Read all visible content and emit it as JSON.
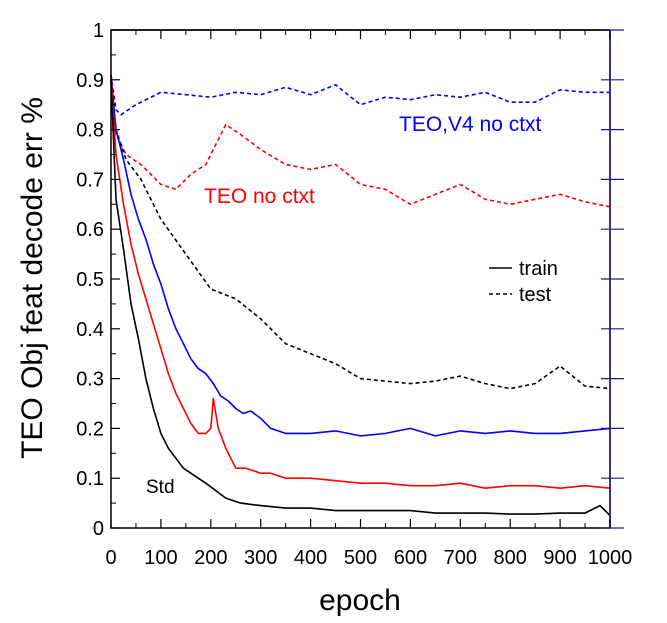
{
  "chart_data": {
    "type": "line",
    "xlabel": "epoch",
    "ylabel": "TEO Obj feat decode err %",
    "xlim": [
      0,
      1000
    ],
    "ylim": [
      0,
      1
    ],
    "xticks": [
      0,
      100,
      200,
      300,
      400,
      500,
      600,
      700,
      800,
      900,
      1000
    ],
    "yticks": [
      0,
      0.1,
      0.2,
      0.3,
      0.4,
      0.5,
      0.6,
      0.7,
      0.8,
      0.9,
      1
    ],
    "xtick_labels": [
      "0",
      "100",
      "200",
      "300",
      "400",
      "500",
      "600",
      "700",
      "800",
      "900",
      "1000"
    ],
    "ytick_labels": [
      "0",
      "0.1",
      "0.2",
      "0.3",
      "0.4",
      "0.5",
      "0.6",
      "0.7",
      "0.8",
      "0.9",
      "1"
    ],
    "grid": false,
    "legend": {
      "position": "right",
      "entries": [
        {
          "label": "train",
          "style": "solid"
        },
        {
          "label": "test",
          "style": "dashed"
        }
      ]
    },
    "annotations": [
      {
        "text": "TEO,V4 no ctxt",
        "color": "#0000ff"
      },
      {
        "text": "TEO no ctxt",
        "color": "#ff0000"
      },
      {
        "text": "Std",
        "color": "#000000"
      }
    ],
    "series": [
      {
        "color": "#0000ff",
        "style": "dashed",
        "x": [
          0,
          10,
          20,
          50,
          100,
          150,
          200,
          250,
          300,
          350,
          400,
          450,
          500,
          550,
          600,
          650,
          700,
          750,
          800,
          850,
          900,
          950,
          1000
        ],
        "y": [
          0.91,
          0.84,
          0.83,
          0.85,
          0.875,
          0.87,
          0.865,
          0.875,
          0.87,
          0.885,
          0.87,
          0.89,
          0.85,
          0.865,
          0.86,
          0.87,
          0.865,
          0.875,
          0.855,
          0.855,
          0.88,
          0.875,
          0.875
        ]
      },
      {
        "color": "#ff0000",
        "style": "dashed",
        "x": [
          0,
          10,
          30,
          60,
          100,
          130,
          160,
          190,
          210,
          230,
          260,
          300,
          350,
          400,
          450,
          500,
          550,
          600,
          650,
          700,
          750,
          800,
          850,
          900,
          950,
          1000
        ],
        "y": [
          0.91,
          0.79,
          0.75,
          0.73,
          0.69,
          0.68,
          0.71,
          0.73,
          0.77,
          0.81,
          0.79,
          0.76,
          0.73,
          0.72,
          0.73,
          0.69,
          0.68,
          0.65,
          0.67,
          0.69,
          0.66,
          0.65,
          0.66,
          0.67,
          0.655,
          0.645
        ]
      },
      {
        "color": "#000000",
        "style": "dashed",
        "x": [
          0,
          10,
          30,
          60,
          100,
          150,
          200,
          250,
          300,
          350,
          400,
          450,
          500,
          550,
          600,
          650,
          700,
          750,
          800,
          850,
          900,
          950,
          1000
        ],
        "y": [
          0.9,
          0.8,
          0.74,
          0.7,
          0.62,
          0.55,
          0.48,
          0.46,
          0.42,
          0.37,
          0.35,
          0.33,
          0.3,
          0.295,
          0.29,
          0.295,
          0.305,
          0.29,
          0.28,
          0.29,
          0.325,
          0.285,
          0.28
        ]
      },
      {
        "color": "#0000ff",
        "style": "solid",
        "x": [
          0,
          10,
          25,
          40,
          55,
          70,
          85,
          100,
          115,
          130,
          145,
          160,
          175,
          190,
          205,
          220,
          235,
          250,
          265,
          280,
          300,
          320,
          350,
          400,
          450,
          500,
          550,
          600,
          650,
          700,
          750,
          800,
          850,
          900,
          950,
          1000
        ],
        "y": [
          0.91,
          0.8,
          0.74,
          0.67,
          0.62,
          0.58,
          0.53,
          0.49,
          0.44,
          0.4,
          0.37,
          0.34,
          0.32,
          0.31,
          0.29,
          0.265,
          0.255,
          0.24,
          0.23,
          0.235,
          0.22,
          0.2,
          0.19,
          0.19,
          0.195,
          0.185,
          0.19,
          0.2,
          0.185,
          0.195,
          0.19,
          0.195,
          0.19,
          0.19,
          0.195,
          0.2
        ]
      },
      {
        "color": "#ff0000",
        "style": "solid",
        "x": [
          0,
          10,
          25,
          40,
          55,
          70,
          85,
          100,
          115,
          130,
          145,
          160,
          175,
          190,
          200,
          205,
          215,
          230,
          250,
          270,
          300,
          320,
          350,
          400,
          450,
          500,
          550,
          600,
          650,
          700,
          750,
          800,
          850,
          900,
          950,
          1000
        ],
        "y": [
          0.91,
          0.75,
          0.65,
          0.57,
          0.51,
          0.46,
          0.41,
          0.36,
          0.31,
          0.27,
          0.24,
          0.21,
          0.19,
          0.19,
          0.2,
          0.26,
          0.2,
          0.16,
          0.12,
          0.12,
          0.11,
          0.11,
          0.1,
          0.1,
          0.095,
          0.09,
          0.09,
          0.085,
          0.085,
          0.09,
          0.08,
          0.085,
          0.085,
          0.08,
          0.085,
          0.08
        ]
      },
      {
        "color": "#000000",
        "style": "solid",
        "x": [
          0,
          10,
          25,
          40,
          55,
          70,
          85,
          100,
          115,
          130,
          145,
          160,
          175,
          190,
          210,
          230,
          260,
          300,
          350,
          400,
          450,
          500,
          550,
          600,
          650,
          700,
          750,
          800,
          850,
          900,
          950,
          980,
          1000
        ],
        "y": [
          0.9,
          0.66,
          0.56,
          0.45,
          0.38,
          0.3,
          0.24,
          0.19,
          0.16,
          0.14,
          0.12,
          0.11,
          0.1,
          0.09,
          0.075,
          0.06,
          0.05,
          0.045,
          0.04,
          0.04,
          0.035,
          0.035,
          0.035,
          0.035,
          0.03,
          0.03,
          0.03,
          0.028,
          0.028,
          0.03,
          0.03,
          0.045,
          0.025
        ]
      }
    ]
  }
}
